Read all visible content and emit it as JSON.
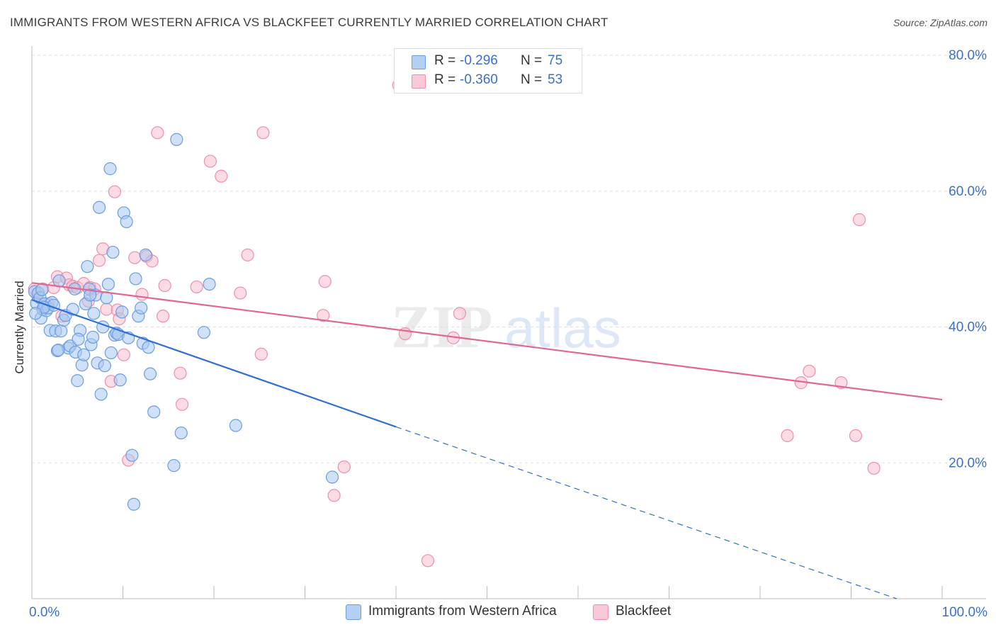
{
  "header": {
    "title": "IMMIGRANTS FROM WESTERN AFRICA VS BLACKFEET CURRENTLY MARRIED CORRELATION CHART",
    "source": "Source: ZipAtlas.com"
  },
  "watermark": "ZIPatlas",
  "colors": {
    "blue_fill": "#a9c8f0",
    "blue_stroke": "#6b9de0",
    "blue_line": "#2f6fd6",
    "pink_fill": "#f7c0d0",
    "pink_stroke": "#ee8fab",
    "pink_line": "#e06890",
    "tick_text": "#3a6fd0",
    "grid": "#dddddd"
  },
  "legend_top": {
    "rows": [
      {
        "r_label": "R =",
        "r_value": "-0.296",
        "n_label": "N =",
        "n_value": "75",
        "color": "#b3cff3",
        "border": "#6b9de0"
      },
      {
        "r_label": "R =",
        "r_value": "-0.360",
        "n_label": "N =",
        "n_value": "53",
        "color": "#f9c9d7",
        "border": "#ee8fab"
      }
    ]
  },
  "legend_bottom": {
    "items": [
      {
        "label": "Immigrants from Western Africa",
        "color": "#b3cff3",
        "border": "#6b9de0"
      },
      {
        "label": "Blackfeet",
        "color": "#f9c9d7",
        "border": "#ee8fab"
      }
    ]
  },
  "chart_data": {
    "type": "scatter",
    "title": "IMMIGRANTS FROM WESTERN AFRICA VS BLACKFEET CURRENTLY MARRIED CORRELATION CHART",
    "xlabel": "",
    "ylabel": "Currently Married",
    "xlim": [
      0,
      100
    ],
    "ylim": [
      0,
      80
    ],
    "x_tick_labels": [
      {
        "value": 0,
        "label": "0.0%"
      },
      {
        "value": 100,
        "label": "100.0%"
      }
    ],
    "y_tick_labels": [
      {
        "value": 20,
        "label": "20.0%"
      },
      {
        "value": 40,
        "label": "40.0%"
      },
      {
        "value": 60,
        "label": "60.0%"
      },
      {
        "value": 80,
        "label": "80.0%"
      }
    ],
    "grid": true,
    "legend_position": "bottom",
    "series": [
      {
        "name": "Immigrants from Western Africa",
        "color": "blue",
        "trend": {
          "x0": 0,
          "y0": 44.0,
          "x1": 40.0,
          "y1": 25.3,
          "dash_to_x": 95.0,
          "dash_to_y": 0.0
        },
        "points": [
          [
            0.3,
            45.2
          ],
          [
            0.5,
            43.5
          ],
          [
            0.7,
            45.0
          ],
          [
            0.9,
            44.3
          ],
          [
            1.0,
            41.3
          ],
          [
            1.2,
            42.6
          ],
          [
            1.4,
            43.4
          ],
          [
            1.6,
            42.4
          ],
          [
            1.8,
            42.8
          ],
          [
            2.0,
            39.5
          ],
          [
            2.2,
            43.6
          ],
          [
            2.4,
            43.2
          ],
          [
            2.6,
            39.4
          ],
          [
            2.8,
            36.5
          ],
          [
            3.0,
            46.8
          ],
          [
            3.2,
            39.4
          ],
          [
            3.5,
            41.0
          ],
          [
            3.7,
            41.7
          ],
          [
            4.0,
            36.9
          ],
          [
            4.2,
            37.2
          ],
          [
            4.5,
            42.6
          ],
          [
            4.7,
            45.6
          ],
          [
            4.8,
            36.3
          ],
          [
            5.0,
            32.1
          ],
          [
            5.3,
            39.5
          ],
          [
            5.5,
            34.4
          ],
          [
            5.7,
            35.9
          ],
          [
            5.9,
            43.4
          ],
          [
            6.1,
            48.9
          ],
          [
            6.3,
            45.6
          ],
          [
            6.5,
            37.4
          ],
          [
            6.7,
            38.5
          ],
          [
            6.8,
            42.0
          ],
          [
            7.0,
            44.7
          ],
          [
            7.2,
            34.7
          ],
          [
            7.4,
            57.6
          ],
          [
            7.6,
            30.1
          ],
          [
            7.8,
            40.0
          ],
          [
            8.0,
            34.3
          ],
          [
            8.2,
            44.3
          ],
          [
            8.4,
            46.3
          ],
          [
            8.6,
            63.3
          ],
          [
            8.7,
            36.2
          ],
          [
            8.9,
            51.0
          ],
          [
            9.1,
            38.8
          ],
          [
            9.3,
            39.1
          ],
          [
            9.5,
            38.9
          ],
          [
            9.7,
            32.2
          ],
          [
            9.9,
            42.2
          ],
          [
            10.1,
            56.8
          ],
          [
            10.4,
            55.5
          ],
          [
            10.6,
            38.4
          ],
          [
            11.0,
            21.1
          ],
          [
            11.2,
            13.9
          ],
          [
            11.4,
            47.1
          ],
          [
            11.7,
            41.6
          ],
          [
            12.0,
            42.8
          ],
          [
            12.2,
            37.6
          ],
          [
            12.5,
            50.6
          ],
          [
            12.8,
            37.0
          ],
          [
            13.0,
            33.1
          ],
          [
            13.4,
            27.5
          ],
          [
            15.6,
            19.6
          ],
          [
            15.9,
            67.6
          ],
          [
            16.4,
            24.4
          ],
          [
            18.9,
            39.2
          ],
          [
            19.5,
            46.3
          ],
          [
            22.4,
            25.5
          ],
          [
            33.0,
            17.9
          ],
          [
            1.3,
            42.9
          ],
          [
            2.9,
            36.6
          ],
          [
            5.1,
            38.2
          ],
          [
            6.4,
            44.7
          ],
          [
            0.4,
            42.0
          ],
          [
            1.1,
            45.5
          ]
        ]
      },
      {
        "name": "Blackfeet",
        "color": "pink",
        "trend": {
          "x0": 0,
          "y0": 46.5,
          "x1": 100,
          "y1": 29.3
        },
        "points": [
          [
            0.3,
            45.6
          ],
          [
            0.6,
            44.8
          ],
          [
            1.2,
            45.6
          ],
          [
            1.8,
            43.4
          ],
          [
            2.4,
            45.8
          ],
          [
            2.8,
            47.4
          ],
          [
            3.3,
            41.6
          ],
          [
            3.8,
            47.2
          ],
          [
            4.1,
            46.2
          ],
          [
            4.5,
            46.0
          ],
          [
            5.0,
            45.8
          ],
          [
            5.7,
            46.4
          ],
          [
            6.2,
            43.8
          ],
          [
            6.4,
            45.8
          ],
          [
            6.9,
            45.6
          ],
          [
            7.4,
            49.8
          ],
          [
            7.8,
            51.5
          ],
          [
            8.2,
            42.6
          ],
          [
            8.7,
            32.0
          ],
          [
            9.1,
            59.9
          ],
          [
            9.4,
            42.5
          ],
          [
            9.6,
            41.2
          ],
          [
            10.1,
            35.9
          ],
          [
            10.6,
            20.4
          ],
          [
            11.3,
            50.2
          ],
          [
            12.1,
            44.8
          ],
          [
            12.6,
            50.4
          ],
          [
            13.2,
            49.7
          ],
          [
            13.8,
            68.6
          ],
          [
            14.4,
            41.6
          ],
          [
            14.6,
            46.1
          ],
          [
            16.3,
            33.2
          ],
          [
            16.5,
            28.6
          ],
          [
            18.1,
            45.9
          ],
          [
            19.6,
            64.4
          ],
          [
            20.8,
            62.2
          ],
          [
            22.9,
            45.0
          ],
          [
            23.7,
            50.6
          ],
          [
            25.2,
            36.0
          ],
          [
            25.4,
            68.6
          ],
          [
            32.0,
            41.7
          ],
          [
            32.2,
            46.7
          ],
          [
            33.2,
            15.2
          ],
          [
            34.3,
            19.4
          ],
          [
            40.3,
            75.6
          ],
          [
            41.0,
            39.0
          ],
          [
            43.5,
            5.6
          ],
          [
            46.3,
            38.4
          ],
          [
            47.0,
            42.0
          ],
          [
            84.5,
            31.8
          ],
          [
            85.4,
            33.5
          ],
          [
            88.9,
            31.8
          ],
          [
            90.9,
            55.8
          ]
        ]
      }
    ],
    "extra_pink_points": [
      [
        83.0,
        24.0
      ],
      [
        90.5,
        24.0
      ],
      [
        92.5,
        19.2
      ]
    ]
  }
}
